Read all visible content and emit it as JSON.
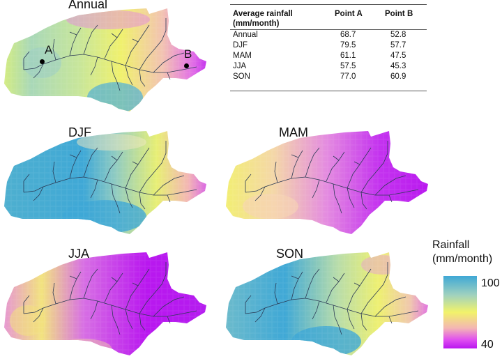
{
  "panels": {
    "annual": "Annual",
    "djf": "DJF",
    "mam": "MAM",
    "jja": "JJA",
    "son": "SON"
  },
  "points": {
    "a": "A",
    "b": "B"
  },
  "table": {
    "header_label": "Average rainfall (mm/month)",
    "col_a": "Point A",
    "col_b": "Point B",
    "rows": [
      {
        "label": "Annual",
        "a": "68.7",
        "b": "52.8"
      },
      {
        "label": "DJF",
        "a": "79.5",
        "b": "57.7"
      },
      {
        "label": "MAM",
        "a": "61.1",
        "b": "47.5"
      },
      {
        "label": "JJA",
        "a": "57.5",
        "b": "45.3"
      },
      {
        "label": "SON",
        "a": "77.0",
        "b": "60.9"
      }
    ]
  },
  "legend": {
    "title": "Rainfall (mm/month)",
    "max": "100",
    "min": "40"
  },
  "colors": {
    "wet": "#3fa8d6",
    "mid": "#f2f36a",
    "dry": "#b917ef",
    "river": "#2b3a55"
  }
}
